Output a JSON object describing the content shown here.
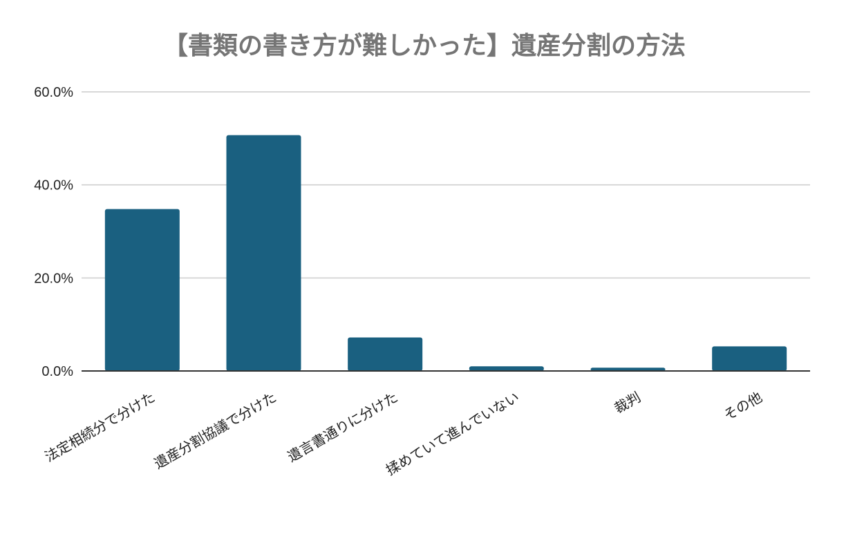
{
  "chart_data": {
    "type": "bar",
    "title": "【書類の書き方が難しかった】遺産分割の方法",
    "xlabel": "",
    "ylabel": "",
    "categories": [
      "法定相続分で分けた",
      "遺産分割協議で分けた",
      "遺言書通りに分けた",
      "揉めていて進んでいない",
      "裁判",
      "その他"
    ],
    "values": [
      34.8,
      50.7,
      7.2,
      1.0,
      0.7,
      5.3
    ],
    "value_unit": "%",
    "ylim": [
      0,
      60
    ],
    "yticks": [
      0,
      20,
      40,
      60
    ],
    "ytick_labels": [
      "0.0%",
      "20.0%",
      "40.0%",
      "60.0%"
    ],
    "grid": true,
    "legend": "none",
    "colors": {
      "bar": "#1a6080",
      "grid": "#cccccc",
      "baseline": "#333333",
      "title": "#757575",
      "text": "#222222"
    }
  }
}
